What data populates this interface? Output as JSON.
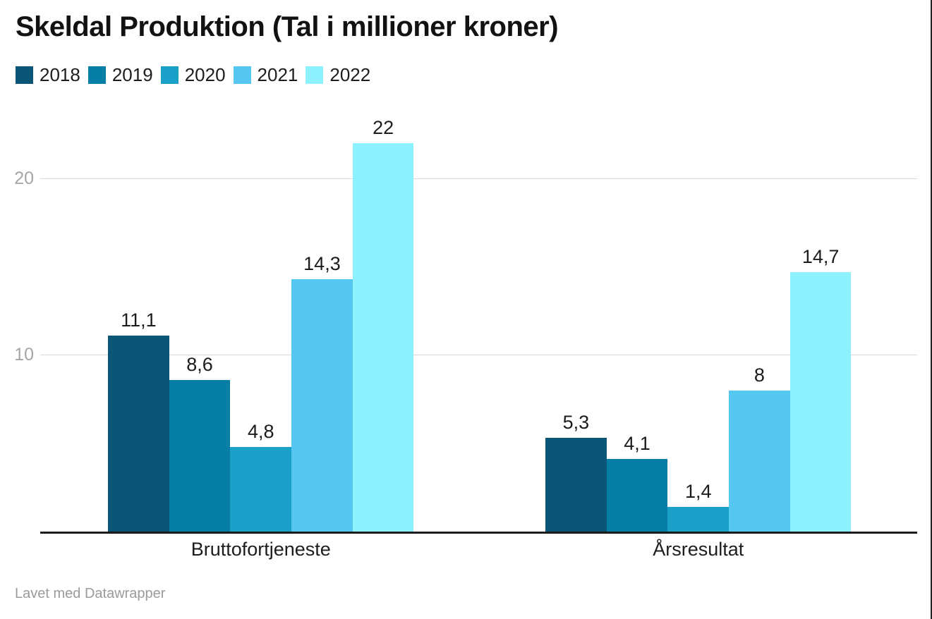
{
  "footer": {
    "credit": "Lavet med Datawrapper"
  },
  "chart_data": {
    "type": "bar",
    "title": "Skeldal Produktion (Tal i millioner kroner)",
    "categories": [
      "Bruttofortjeneste",
      "Årsresultat"
    ],
    "series": [
      {
        "name": "2018",
        "color": "#0b5577",
        "values": [
          11.1,
          5.3
        ],
        "labels": [
          "11,1",
          "5,3"
        ]
      },
      {
        "name": "2019",
        "color": "#067ea6",
        "values": [
          8.6,
          4.1
        ],
        "labels": [
          "8,6",
          "4,1"
        ]
      },
      {
        "name": "2020",
        "color": "#1aa0c9",
        "values": [
          4.8,
          1.4
        ],
        "labels": [
          "4,8",
          "1,4"
        ]
      },
      {
        "name": "2021",
        "color": "#56c7f0",
        "values": [
          14.3,
          8
        ],
        "labels": [
          "14,3",
          "8"
        ]
      },
      {
        "name": "2022",
        "color": "#8df2fd",
        "values": [
          22,
          14.7
        ],
        "labels": [
          "22",
          "14,7"
        ]
      }
    ],
    "y_ticks": [
      10,
      20
    ],
    "ylim": [
      0,
      22.5
    ],
    "grid": true,
    "legend_position": "top",
    "value_labels_shown": true,
    "decimal_separator": ","
  }
}
